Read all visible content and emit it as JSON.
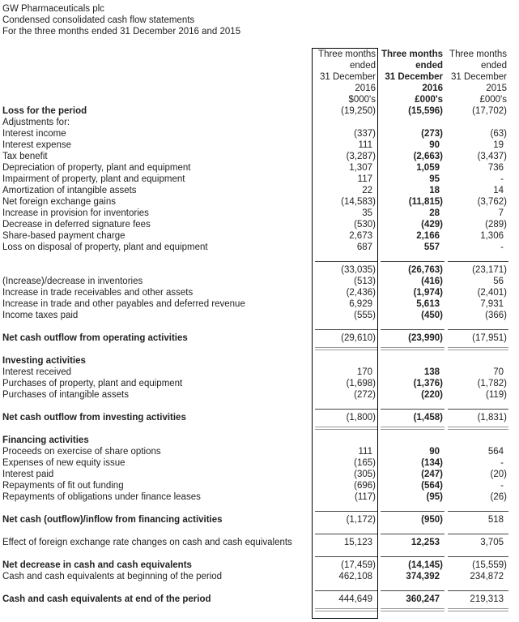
{
  "titles": [
    "GW Pharmaceuticals plc",
    "Condensed consolidated cash flow statements",
    "For the three months ended 31 December 2016 and 2015"
  ],
  "columns": [
    {
      "lines": [
        "Three months",
        "ended",
        "31 December",
        "2016",
        "$000's"
      ]
    },
    {
      "lines": [
        "Three months",
        "ended",
        "31 December",
        "2016",
        "£000's"
      ]
    },
    {
      "lines": [
        "Three months",
        "ended",
        "31 December",
        "2015",
        "£000's"
      ]
    }
  ],
  "rows": [
    {
      "label": "Loss for the period",
      "values": [
        "(19,250)",
        "(15,596)",
        "(17,702)"
      ],
      "bold": true
    },
    {
      "label": "Adjustments for:",
      "values": [
        "",
        "",
        ""
      ]
    },
    {
      "label": "Interest income",
      "values": [
        "(337)",
        "(273)",
        "(63)"
      ]
    },
    {
      "label": "Interest expense",
      "values": [
        "111",
        "90",
        "19"
      ]
    },
    {
      "label": "Tax benefit",
      "values": [
        "(3,287)",
        "(2,663)",
        "(3,437)"
      ]
    },
    {
      "label": "Depreciation of property, plant and equipment",
      "values": [
        "1,307",
        "1,059",
        "736"
      ]
    },
    {
      "label": "Impairment of property, plant and equipment",
      "values": [
        "117",
        "95",
        "-"
      ]
    },
    {
      "label": "Amortization of intangible assets",
      "values": [
        "22",
        "18",
        "14"
      ]
    },
    {
      "label": "Net foreign exchange gains",
      "values": [
        "(14,583)",
        "(11,815)",
        "(3,762)"
      ]
    },
    {
      "label": "Increase in provision for inventories",
      "values": [
        "35",
        "28",
        "7"
      ]
    },
    {
      "label": "Decrease in deferred signature fees",
      "values": [
        "(530)",
        "(429)",
        "(289)"
      ]
    },
    {
      "label": "Share-based payment charge",
      "values": [
        "2,673",
        "2,166",
        "1,306"
      ]
    },
    {
      "label": "Loss on disposal of property, plant and equipment",
      "values": [
        "687",
        "557",
        "-"
      ]
    },
    {
      "blank": true
    },
    {
      "label": "",
      "values": [
        "(33,035)",
        "(26,763)",
        "(23,171)"
      ],
      "rule": true
    },
    {
      "label": "(Increase)/decrease in inventories",
      "values": [
        "(513)",
        "(416)",
        "56"
      ]
    },
    {
      "label": "Increase in trade receivables and other assets",
      "values": [
        "(2,436)",
        "(1,974)",
        "(2,401)"
      ]
    },
    {
      "label": "Increase in trade and other payables and deferred revenue",
      "values": [
        "6,929",
        "5,613",
        "7,931"
      ]
    },
    {
      "label": "Income taxes paid",
      "values": [
        "(555)",
        "(450)",
        "(366)"
      ]
    },
    {
      "blank": true
    },
    {
      "label": "Net cash outflow from operating activities",
      "values": [
        "(29,610)",
        "(23,990)",
        "(17,951)"
      ],
      "bold": true,
      "rule": true
    },
    {
      "blank": true,
      "dbl": true
    },
    {
      "label": "Investing activities",
      "values": [
        "",
        "",
        ""
      ],
      "bold": true
    },
    {
      "label": "Interest received",
      "values": [
        "170",
        "138",
        "70"
      ]
    },
    {
      "label": "Purchases of property, plant and equipment",
      "values": [
        "(1,698)",
        "(1,376)",
        "(1,782)"
      ]
    },
    {
      "label": "Purchases of intangible assets",
      "values": [
        "(272)",
        "(220)",
        "(119)"
      ]
    },
    {
      "blank": true
    },
    {
      "label": "Net cash outflow from investing activities",
      "values": [
        "(1,800)",
        "(1,458)",
        "(1,831)"
      ],
      "bold": true,
      "rule": true
    },
    {
      "blank": true,
      "dbl": true
    },
    {
      "label": "Financing activities",
      "values": [
        "",
        "",
        ""
      ],
      "bold": true
    },
    {
      "label": "Proceeds on exercise of share options",
      "values": [
        "111",
        "90",
        "564"
      ]
    },
    {
      "label": "Expenses of new equity issue",
      "values": [
        "(165)",
        "(134)",
        "-"
      ]
    },
    {
      "label": "Interest paid",
      "values": [
        "(305)",
        "(247)",
        "(20)"
      ]
    },
    {
      "label": "Repayments of fit out funding",
      "values": [
        "(696)",
        "(564)",
        "-"
      ]
    },
    {
      "label": "Repayments of obligations under finance leases",
      "values": [
        "(117)",
        "(95)",
        "(26)"
      ]
    },
    {
      "blank": true
    },
    {
      "label": "Net cash (outflow)/inflow from financing activities",
      "values": [
        "(1,172)",
        "(950)",
        "518"
      ],
      "bold": true,
      "rule": true
    },
    {
      "blank": true
    },
    {
      "label": "Effect of foreign exchange rate changes on cash and cash equivalents",
      "values": [
        "15,123",
        "12,253",
        "3,705"
      ],
      "rule": true
    },
    {
      "blank": true
    },
    {
      "label": "Net decrease in cash and cash equivalents",
      "values": [
        "(17,459)",
        "(14,145)",
        "(15,559)"
      ],
      "bold": true,
      "rule": true
    },
    {
      "label": "Cash and cash equivalents at beginning of the period",
      "values": [
        "462,108",
        "374,392",
        "234,872"
      ]
    },
    {
      "blank": true
    },
    {
      "label": "Cash and cash equivalents at end of the period",
      "values": [
        "444,649",
        "360,247",
        "219,313"
      ],
      "bold": true,
      "rule": true
    },
    {
      "blank": true,
      "dbl": true
    }
  ]
}
